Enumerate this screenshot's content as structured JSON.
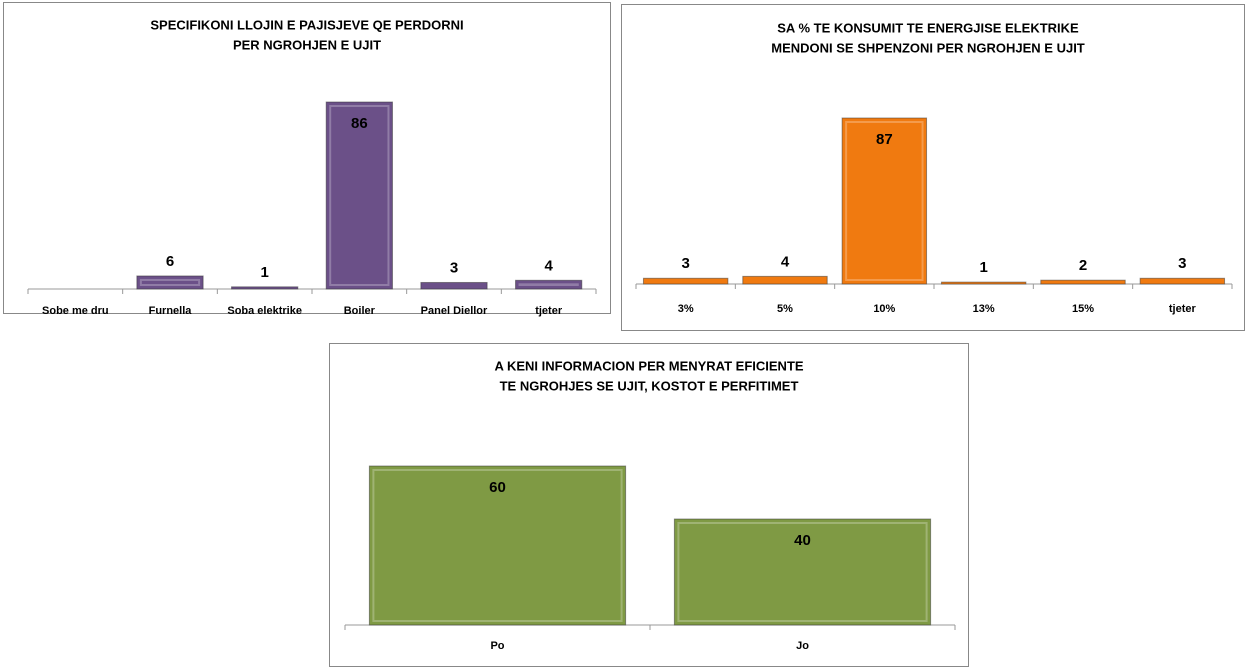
{
  "chart_data": [
    {
      "type": "bar",
      "title": [
        "SPECIFIKONI LLOJIN E PAJISJEVE QE PERDORNI",
        "PER NGROHJEN E UJIT"
      ],
      "categories": [
        "Sobe me dru",
        "Furnella",
        "Soba elektrike",
        "Boiler",
        "Panel Diellor",
        "tjeter"
      ],
      "values": [
        0,
        6,
        1,
        86,
        3,
        4
      ],
      "value_labels": [
        null,
        "6",
        "1",
        "86",
        "3",
        "4"
      ],
      "color": "#6b5088"
    },
    {
      "type": "bar",
      "title": [
        "SA % TE KONSUMIT TE ENERGJISE ELEKTRIKE",
        "MENDONI SE SHPENZONI PER  NGROHJEN E UJIT"
      ],
      "categories": [
        "3%",
        "5%",
        "10%",
        "13%",
        "15%",
        "tjeter"
      ],
      "values": [
        3,
        4,
        87,
        1,
        2,
        3
      ],
      "color": "#f07a10"
    },
    {
      "type": "bar",
      "title": [
        "A KENI INFORMACION PER MENYRAT EFICIENTE",
        "TE NGROHJES SE UJIT, KOSTOT E PERFITIMET"
      ],
      "categories": [
        "Po",
        "Jo"
      ],
      "values": [
        60,
        40
      ],
      "color": "#7f9a44"
    }
  ]
}
